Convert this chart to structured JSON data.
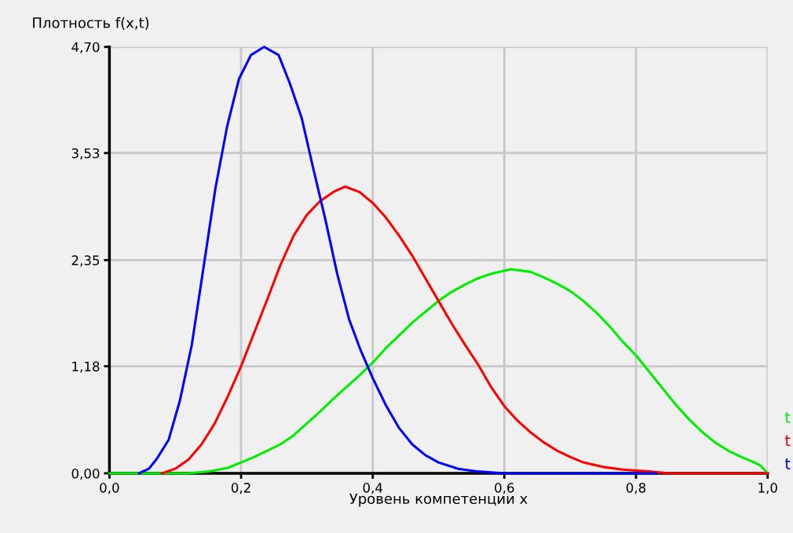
{
  "chart_data": {
    "type": "line",
    "ylabel": "Плотность f(x,t)",
    "xlabel": "Уровень компетенции x",
    "xlim": [
      0,
      1
    ],
    "ylim": [
      0,
      4.7
    ],
    "xticks": [
      {
        "value": 0,
        "label": "0,0"
      },
      {
        "value": 0.2,
        "label": "0,2"
      },
      {
        "value": 0.4,
        "label": "0,4"
      },
      {
        "value": 0.6,
        "label": "0,6"
      },
      {
        "value": 0.8,
        "label": "0,8"
      },
      {
        "value": 1,
        "label": "1,0"
      }
    ],
    "yticks": [
      {
        "value": 0,
        "label": "0,00"
      },
      {
        "value": 1.18,
        "label": "1,18"
      },
      {
        "value": 2.35,
        "label": "2,35"
      },
      {
        "value": 3.53,
        "label": "3,53"
      },
      {
        "value": 4.7,
        "label": "4,70"
      }
    ],
    "grid": true,
    "legend": "right",
    "marker": "none",
    "line_style": "solid",
    "series": [
      {
        "name": "t",
        "color": "#00ee00",
        "x": [
          0,
          0.12,
          0.15,
          0.18,
          0.2,
          0.22,
          0.24,
          0.26,
          0.28,
          0.3,
          0.32,
          0.34,
          0.36,
          0.38,
          0.4,
          0.42,
          0.44,
          0.46,
          0.48,
          0.5,
          0.52,
          0.54,
          0.56,
          0.58,
          0.61,
          0.64,
          0.66,
          0.68,
          0.7,
          0.72,
          0.74,
          0.76,
          0.78,
          0.8,
          0.82,
          0.84,
          0.86,
          0.88,
          0.9,
          0.92,
          0.94,
          0.96,
          0.98,
          0.99,
          1.0
        ],
        "values": [
          0,
          0,
          0.02,
          0.06,
          0.12,
          0.18,
          0.25,
          0.32,
          0.42,
          0.55,
          0.68,
          0.82,
          0.95,
          1.08,
          1.22,
          1.38,
          1.52,
          1.66,
          1.78,
          1.9,
          2.0,
          2.08,
          2.15,
          2.2,
          2.25,
          2.22,
          2.16,
          2.09,
          2.01,
          1.9,
          1.77,
          1.62,
          1.45,
          1.3,
          1.12,
          0.94,
          0.76,
          0.6,
          0.46,
          0.34,
          0.25,
          0.18,
          0.12,
          0.08,
          0
        ]
      },
      {
        "name": "t",
        "color": "#ff0000",
        "x": [
          0.08,
          0.1,
          0.12,
          0.14,
          0.16,
          0.18,
          0.2,
          0.22,
          0.24,
          0.26,
          0.28,
          0.3,
          0.32,
          0.34,
          0.358,
          0.38,
          0.4,
          0.42,
          0.44,
          0.46,
          0.48,
          0.5,
          0.52,
          0.54,
          0.56,
          0.58,
          0.6,
          0.62,
          0.64,
          0.66,
          0.68,
          0.7,
          0.72,
          0.75,
          0.78,
          0.82,
          0.85,
          1.0
        ],
        "values": [
          0,
          0.05,
          0.15,
          0.32,
          0.55,
          0.85,
          1.18,
          1.55,
          1.92,
          2.3,
          2.62,
          2.85,
          3.0,
          3.1,
          3.16,
          3.1,
          2.98,
          2.82,
          2.62,
          2.4,
          2.15,
          1.9,
          1.65,
          1.42,
          1.2,
          0.95,
          0.74,
          0.58,
          0.45,
          0.34,
          0.25,
          0.18,
          0.12,
          0.07,
          0.04,
          0.02,
          0,
          0
        ]
      },
      {
        "name": "t",
        "color": "#0000ff",
        "x": [
          0.045,
          0.06,
          0.072,
          0.09,
          0.107,
          0.125,
          0.143,
          0.161,
          0.179,
          0.197,
          0.215,
          0.235,
          0.257,
          0.274,
          0.292,
          0.31,
          0.328,
          0.346,
          0.364,
          0.382,
          0.4,
          0.42,
          0.44,
          0.46,
          0.48,
          0.5,
          0.53,
          0.56,
          0.6,
          0.83
        ],
        "values": [
          0,
          0.05,
          0.16,
          0.37,
          0.8,
          1.41,
          2.27,
          3.14,
          3.83,
          4.35,
          4.61,
          4.7,
          4.61,
          4.3,
          3.92,
          3.35,
          2.8,
          2.2,
          1.7,
          1.35,
          1.05,
          0.75,
          0.5,
          0.32,
          0.2,
          0.12,
          0.05,
          0.02,
          0,
          0
        ]
      }
    ]
  }
}
